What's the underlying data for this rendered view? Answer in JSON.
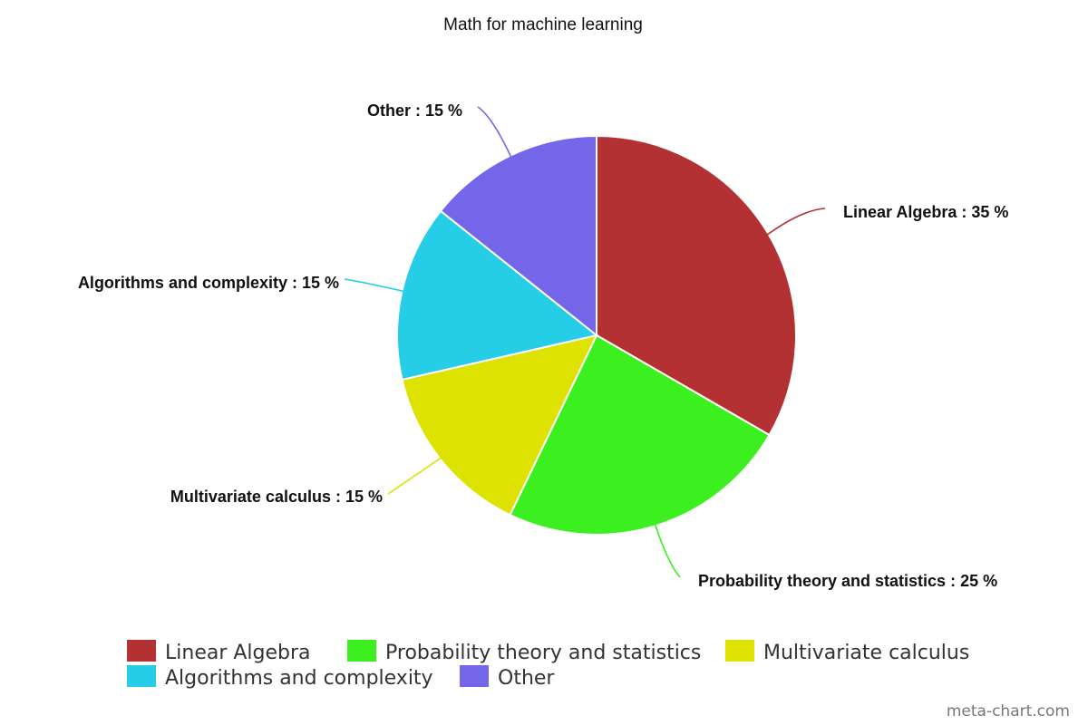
{
  "chart_data": {
    "type": "pie",
    "title": "Math for machine learning",
    "unit": "%",
    "slices": [
      {
        "name": "Linear Algebra",
        "value": 35,
        "label": "Linear Algebra : 35 %",
        "color": "#b33033"
      },
      {
        "name": "Probability theory and statistics",
        "value": 25,
        "label": "Probability theory and statistics : 25 %",
        "color": "#3cf01f"
      },
      {
        "name": "Multivariate calculus",
        "value": 15,
        "label": "Multivariate calculus : 15 %",
        "color": "#dde200"
      },
      {
        "name": "Algorithms and complexity",
        "value": 15,
        "label": "Algorithms and complexity : 15 %",
        "color": "#26cde6"
      },
      {
        "name": "Other",
        "value": 15,
        "label": "Other : 15 %",
        "color": "#7466e8"
      }
    ],
    "legend": {
      "position": "bottom",
      "entries": [
        "Linear Algebra",
        "Probability theory and statistics",
        "Multivariate calculus",
        "Algorithms and complexity",
        "Other"
      ]
    },
    "start_angle": "12 o'clock",
    "direction": "clockwise"
  },
  "watermark": "meta-chart.com"
}
